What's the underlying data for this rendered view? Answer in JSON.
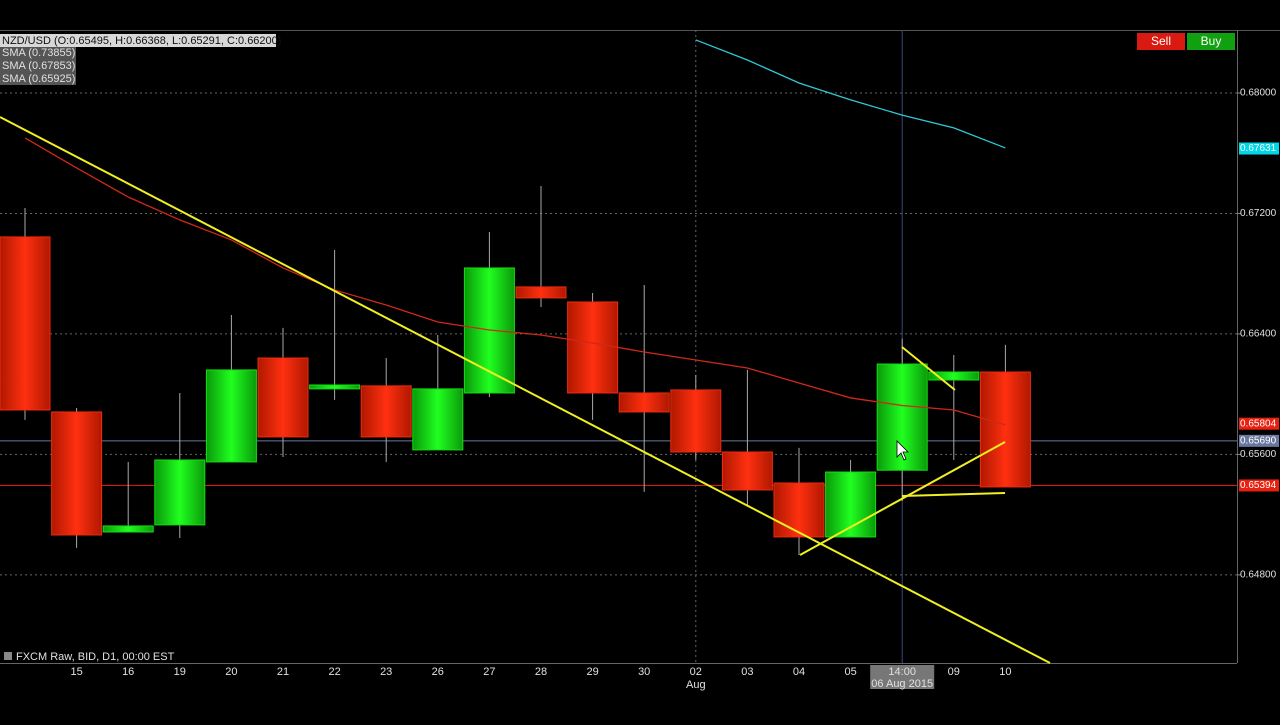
{
  "chart_data": {
    "type": "candlestick",
    "title": "NZD/USD (O:0.65495, H:0.66368, L:0.65291, C:0.66200)",
    "legend": [
      "SMA (0.73855)",
      "SMA (0.67853)",
      "SMA (0.65925)"
    ],
    "footer": "FXCM Raw, BID, D1, 00:00 EST",
    "buttons": [
      "Sell",
      "Buy"
    ],
    "categories": [
      null,
      "15",
      "16",
      "19",
      "20",
      "21",
      "22",
      "23",
      "26",
      "27",
      "28",
      "29",
      "30",
      "02",
      "03",
      "04",
      "05",
      null,
      "09",
      "10"
    ],
    "month_label": {
      "index": 13,
      "label": "Aug"
    },
    "crosshair": {
      "index": 17,
      "value": 0.6569,
      "time": "14:00",
      "date": "06 Aug 2015"
    },
    "open": [
      0.67044,
      0.65882,
      0.65085,
      0.65132,
      0.6555,
      0.6624,
      0.66035,
      0.66055,
      0.6563,
      0.66008,
      0.66712,
      0.66612,
      0.66008,
      0.66028,
      0.65616,
      0.6541,
      0.65052,
      0.65495,
      0.66094,
      0.66147
    ],
    "high": [
      0.67236,
      0.65908,
      0.6555,
      0.66008,
      0.66526,
      0.6644,
      0.66958,
      0.6624,
      0.66393,
      0.67077,
      0.67382,
      0.66672,
      0.66725,
      0.66128,
      0.66161,
      0.65643,
      0.65563,
      0.66368,
      0.6626,
      0.66327
    ],
    "low": [
      0.65829,
      0.64979,
      0.65085,
      0.65045,
      0.6555,
      0.65583,
      0.65962,
      0.6555,
      0.6563,
      0.65981,
      0.66579,
      0.65829,
      0.65351,
      0.65563,
      0.65264,
      0.64932,
      0.65052,
      0.65291,
      0.65563,
      0.65384
    ],
    "close": [
      0.65895,
      0.65065,
      0.65125,
      0.65563,
      0.66161,
      0.65716,
      0.66061,
      0.65716,
      0.66035,
      0.66838,
      0.66639,
      0.66008,
      0.65882,
      0.65616,
      0.65364,
      0.65052,
      0.65483,
      0.662,
      0.66147,
      0.65384
    ],
    "up_color": "#10e010",
    "down_color": "#f02a10",
    "sma": [
      {
        "color": "#30c8d8",
        "values": [
          null,
          null,
          null,
          null,
          null,
          null,
          null,
          null,
          null,
          null,
          null,
          null,
          null,
          0.68352,
          0.68219,
          0.68066,
          0.67954,
          0.67853,
          0.67768,
          0.67635
        ]
      },
      {
        "color": "#d02818",
        "values": [
          0.67701,
          0.67502,
          0.67309,
          0.67157,
          0.67024,
          0.66838,
          0.66692,
          0.66592,
          0.66479,
          0.66426,
          0.66393,
          0.6634,
          0.6628,
          0.66227,
          0.66174,
          0.66074,
          0.65975,
          0.65925,
          0.65895,
          0.65796
        ]
      }
    ],
    "price_markers": [
      {
        "value": 0.67631,
        "label": "0.67631",
        "color": "#00d8e8",
        "line": false
      },
      {
        "value": 0.65804,
        "label": "0.65804",
        "color": "#e82010",
        "line": false
      },
      {
        "value": 0.6569,
        "label": "0.65690",
        "color": "#6878a0",
        "line": true
      },
      {
        "value": 0.65394,
        "label": "0.65394",
        "color": "#e82010",
        "line": true
      }
    ],
    "ylim": [
      0.64215,
      0.68418
    ],
    "yticks": [
      {
        "value": 0.648,
        "label": "0.64800"
      },
      {
        "value": 0.656,
        "label": "0.65600"
      },
      {
        "value": 0.664,
        "label": "0.66400"
      },
      {
        "value": 0.672,
        "label": "0.67200"
      },
      {
        "value": 0.68,
        "label": "0.68000"
      }
    ],
    "grid": true
  }
}
